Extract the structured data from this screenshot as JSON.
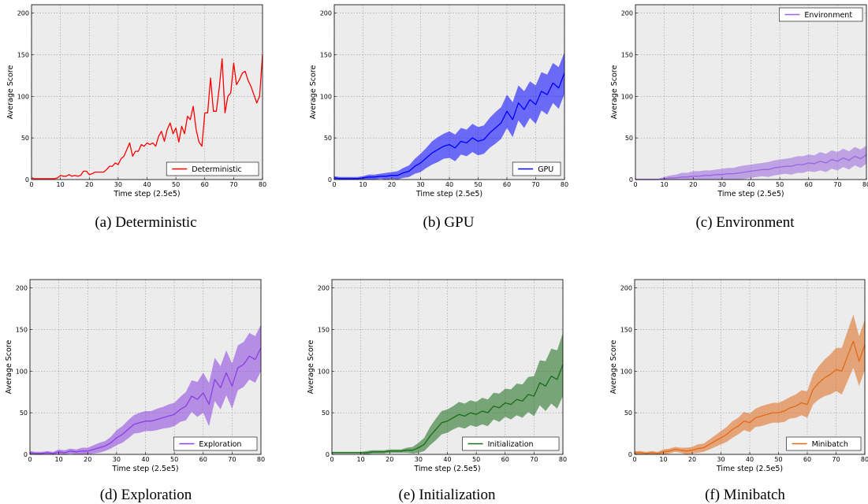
{
  "chart_data": [
    {
      "type": "line",
      "caption": "(a) Deterministic",
      "xlabel": "Time step (2.5e5)",
      "ylabel": "Average Score",
      "xlim": [
        0,
        80
      ],
      "ylim": [
        0,
        210
      ],
      "xticks": [
        0,
        10,
        20,
        30,
        40,
        50,
        60,
        70,
        80
      ],
      "yticks": [
        0,
        50,
        100,
        150,
        200
      ],
      "grid": true,
      "legend_position": "bottom-right",
      "series": [
        {
          "name": "Deterministic",
          "color": "#ff0000",
          "x": [
            0,
            1,
            2,
            3,
            4,
            5,
            6,
            7,
            8,
            9,
            10,
            11,
            12,
            13,
            14,
            15,
            16,
            17,
            18,
            19,
            20,
            21,
            22,
            23,
            24,
            25,
            26,
            27,
            28,
            29,
            30,
            31,
            32,
            33,
            34,
            35,
            36,
            37,
            38,
            39,
            40,
            41,
            42,
            43,
            44,
            45,
            46,
            47,
            48,
            49,
            50,
            51,
            52,
            53,
            54,
            55,
            56,
            57,
            58,
            59,
            60,
            61,
            62,
            63,
            64,
            65,
            66,
            67,
            68,
            69,
            70,
            71,
            72,
            73,
            74,
            75,
            76,
            77,
            78,
            79,
            80
          ],
          "y": [
            2,
            1,
            1,
            1,
            1,
            1,
            1,
            1,
            1,
            2,
            5,
            4,
            4,
            6,
            4,
            5,
            4,
            5,
            10,
            10,
            6,
            7,
            9,
            9,
            9,
            9,
            12,
            16,
            16,
            20,
            18,
            25,
            28,
            36,
            44,
            28,
            34,
            34,
            42,
            40,
            44,
            42,
            44,
            40,
            52,
            58,
            46,
            60,
            68,
            55,
            62,
            45,
            64,
            55,
            76,
            72,
            88,
            60,
            45,
            40,
            80,
            80,
            122,
            82,
            82,
            110,
            145,
            80,
            100,
            104,
            140,
            114,
            120,
            128,
            130,
            119,
            112,
            102,
            92,
            100,
            150
          ],
          "band": null
        }
      ]
    },
    {
      "type": "line",
      "caption": "(b) GPU",
      "xlabel": "Time step (2.5e5)",
      "ylabel": "Average Score",
      "xlim": [
        0,
        80
      ],
      "ylim": [
        0,
        210
      ],
      "xticks": [
        0,
        10,
        20,
        30,
        40,
        50,
        60,
        70,
        80
      ],
      "yticks": [
        0,
        50,
        100,
        150,
        200
      ],
      "grid": true,
      "legend_position": "bottom-right",
      "series": [
        {
          "name": "GPU",
          "color": "#0000ff",
          "x": [
            0,
            2,
            4,
            6,
            8,
            10,
            12,
            14,
            16,
            18,
            20,
            22,
            24,
            26,
            28,
            30,
            32,
            34,
            36,
            38,
            40,
            42,
            44,
            46,
            48,
            50,
            52,
            54,
            56,
            58,
            60,
            62,
            64,
            66,
            68,
            70,
            72,
            74,
            76,
            78,
            80
          ],
          "y": [
            2,
            1,
            1,
            1,
            1,
            2,
            3,
            3,
            4,
            4,
            5,
            5,
            8,
            10,
            16,
            20,
            26,
            32,
            36,
            40,
            42,
            38,
            46,
            44,
            50,
            46,
            48,
            56,
            62,
            68,
            82,
            72,
            92,
            84,
            96,
            90,
            106,
            102,
            116,
            110,
            128
          ],
          "band": [
            2,
            2,
            2,
            2,
            2,
            2,
            3,
            3,
            3,
            4,
            4,
            5,
            6,
            7,
            9,
            11,
            12,
            14,
            15,
            15,
            16,
            16,
            16,
            16,
            17,
            17,
            17,
            18,
            19,
            19,
            20,
            21,
            21,
            22,
            22,
            23,
            23,
            24,
            24,
            25,
            25
          ]
        }
      ]
    },
    {
      "type": "line",
      "caption": "(c) Environment",
      "xlabel": "Time step (2.5e5)",
      "ylabel": "Average Score",
      "xlim": [
        0,
        80
      ],
      "ylim": [
        0,
        210
      ],
      "xticks": [
        0,
        10,
        20,
        30,
        40,
        50,
        60,
        70,
        80
      ],
      "yticks": [
        0,
        50,
        100,
        150,
        200
      ],
      "grid": true,
      "legend_position": "top-right",
      "series": [
        {
          "name": "Environment",
          "color": "#9966dd",
          "x": [
            0,
            2,
            4,
            6,
            8,
            10,
            12,
            14,
            16,
            18,
            20,
            22,
            24,
            26,
            28,
            30,
            32,
            34,
            36,
            38,
            40,
            42,
            44,
            46,
            48,
            50,
            52,
            54,
            56,
            58,
            60,
            62,
            64,
            66,
            68,
            70,
            72,
            74,
            76,
            78,
            80
          ],
          "y": [
            0,
            0,
            0,
            0,
            0,
            1,
            2,
            2,
            3,
            3,
            4,
            4,
            5,
            5,
            6,
            6,
            7,
            7,
            8,
            9,
            10,
            11,
            12,
            12,
            14,
            15,
            16,
            16,
            18,
            18,
            20,
            19,
            22,
            20,
            24,
            22,
            26,
            23,
            28,
            25,
            30
          ],
          "band": [
            1,
            1,
            1,
            1,
            1,
            2,
            3,
            4,
            5,
            5,
            6,
            6,
            6,
            6,
            6,
            7,
            7,
            7,
            8,
            8,
            8,
            8,
            8,
            9,
            9,
            9,
            9,
            10,
            10,
            10,
            10,
            10,
            11,
            11,
            11,
            11,
            11,
            11,
            11,
            11,
            11
          ]
        }
      ]
    },
    {
      "type": "line",
      "caption": "(d) Exploration",
      "xlabel": "Time step (2.5e5)",
      "ylabel": "Average Score",
      "xlim": [
        0,
        80
      ],
      "ylim": [
        0,
        210
      ],
      "xticks": [
        0,
        10,
        20,
        30,
        40,
        50,
        60,
        70,
        80
      ],
      "yticks": [
        0,
        50,
        100,
        150,
        200
      ],
      "grid": true,
      "legend_position": "bottom-right",
      "series": [
        {
          "name": "Exploration",
          "color": "#8b3fe0",
          "x": [
            0,
            2,
            4,
            6,
            8,
            10,
            12,
            14,
            16,
            18,
            20,
            22,
            24,
            26,
            28,
            30,
            32,
            34,
            36,
            38,
            40,
            42,
            44,
            46,
            48,
            50,
            52,
            54,
            56,
            58,
            60,
            62,
            64,
            66,
            68,
            70,
            72,
            74,
            76,
            78,
            80
          ],
          "y": [
            2,
            1,
            1,
            2,
            1,
            3,
            2,
            4,
            3,
            4,
            4,
            6,
            8,
            10,
            14,
            20,
            24,
            30,
            36,
            38,
            40,
            40,
            42,
            44,
            46,
            48,
            54,
            58,
            70,
            66,
            74,
            60,
            90,
            80,
            98,
            82,
            104,
            108,
            118,
            114,
            128
          ],
          "band": [
            2,
            2,
            2,
            2,
            2,
            3,
            3,
            3,
            3,
            4,
            4,
            5,
            6,
            6,
            7,
            9,
            10,
            11,
            11,
            12,
            12,
            12,
            13,
            13,
            14,
            14,
            15,
            17,
            19,
            21,
            24,
            26,
            26,
            26,
            27,
            27,
            27,
            27,
            28,
            28,
            28
          ]
        }
      ]
    },
    {
      "type": "line",
      "caption": "(e) Initialization",
      "xlabel": "Time step (2.5e5)",
      "ylabel": "Average Score",
      "xlim": [
        0,
        80
      ],
      "ylim": [
        0,
        210
      ],
      "xticks": [
        0,
        10,
        20,
        30,
        40,
        50,
        60,
        70,
        80
      ],
      "yticks": [
        0,
        50,
        100,
        150,
        200
      ],
      "grid": true,
      "legend_position": "bottom-right",
      "series": [
        {
          "name": "Initialization",
          "color": "#1a6b1a",
          "x": [
            0,
            2,
            4,
            6,
            8,
            10,
            12,
            14,
            16,
            18,
            20,
            22,
            24,
            26,
            28,
            30,
            32,
            34,
            36,
            38,
            40,
            42,
            44,
            46,
            48,
            50,
            52,
            54,
            56,
            58,
            60,
            62,
            64,
            66,
            68,
            70,
            72,
            74,
            76,
            78,
            80
          ],
          "y": [
            2,
            2,
            2,
            2,
            2,
            2,
            2,
            3,
            3,
            3,
            4,
            4,
            4,
            5,
            5,
            8,
            12,
            22,
            30,
            38,
            40,
            44,
            48,
            46,
            50,
            48,
            52,
            50,
            58,
            56,
            62,
            60,
            66,
            64,
            72,
            70,
            86,
            82,
            94,
            90,
            108
          ],
          "band": [
            1,
            1,
            1,
            1,
            1,
            1,
            2,
            2,
            2,
            2,
            2,
            2,
            2,
            3,
            4,
            6,
            8,
            11,
            13,
            14,
            14,
            14,
            15,
            15,
            15,
            15,
            16,
            16,
            16,
            17,
            17,
            18,
            19,
            20,
            21,
            24,
            27,
            30,
            33,
            35,
            38
          ]
        }
      ]
    },
    {
      "type": "line",
      "caption": "(f) Minibatch",
      "xlabel": "Time step (2.5e5)",
      "ylabel": "Average Score",
      "xlim": [
        0,
        80
      ],
      "ylim": [
        0,
        210
      ],
      "xticks": [
        0,
        10,
        20,
        30,
        40,
        50,
        60,
        70,
        80
      ],
      "yticks": [
        0,
        50,
        100,
        150,
        200
      ],
      "grid": true,
      "legend_position": "bottom-right",
      "series": [
        {
          "name": "Minibatch",
          "color": "#e06a1a",
          "x": [
            0,
            2,
            4,
            6,
            8,
            10,
            12,
            14,
            16,
            18,
            20,
            22,
            24,
            26,
            28,
            30,
            32,
            34,
            36,
            38,
            40,
            42,
            44,
            46,
            48,
            50,
            52,
            54,
            56,
            58,
            60,
            62,
            64,
            66,
            68,
            70,
            72,
            74,
            76,
            78,
            80
          ],
          "y": [
            2,
            2,
            1,
            2,
            1,
            3,
            4,
            6,
            5,
            4,
            5,
            7,
            8,
            12,
            16,
            20,
            24,
            30,
            34,
            40,
            38,
            44,
            46,
            48,
            50,
            50,
            52,
            56,
            58,
            62,
            60,
            78,
            86,
            92,
            96,
            102,
            100,
            118,
            136,
            112,
            132
          ],
          "band": [
            2,
            2,
            2,
            2,
            2,
            3,
            3,
            3,
            3,
            4,
            4,
            5,
            5,
            6,
            7,
            8,
            9,
            10,
            10,
            11,
            11,
            11,
            12,
            12,
            12,
            12,
            13,
            13,
            14,
            15,
            16,
            18,
            20,
            22,
            24,
            26,
            28,
            30,
            32,
            30,
            30
          ]
        }
      ]
    }
  ]
}
